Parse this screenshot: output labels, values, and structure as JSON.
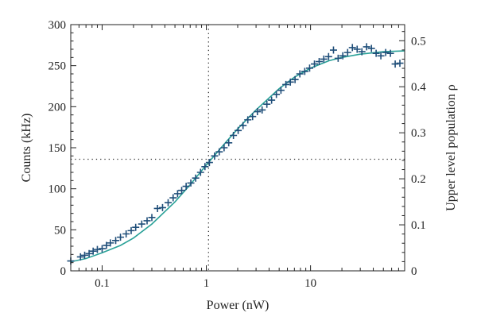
{
  "chart_data": {
    "type": "scatter",
    "xlabel": "Power (nW)",
    "ylabel": "Counts (kHz)",
    "y2label": "Upper level population ρ",
    "x_scale": "log",
    "xlim": [
      0.05,
      80
    ],
    "ylim": [
      0,
      300
    ],
    "y2lim": [
      0,
      0.535
    ],
    "x_ticks": [
      {
        "value": 0.1,
        "label": "0.1"
      },
      {
        "value": 1,
        "label": "1"
      },
      {
        "value": 10,
        "label": "10"
      }
    ],
    "y_ticks": [
      {
        "value": 0,
        "label": "0"
      },
      {
        "value": 50,
        "label": "50"
      },
      {
        "value": 100,
        "label": "100"
      },
      {
        "value": 150,
        "label": "150"
      },
      {
        "value": 200,
        "label": "200"
      },
      {
        "value": 250,
        "label": "250"
      },
      {
        "value": 300,
        "label": "300"
      }
    ],
    "y2_ticks": [
      {
        "value": 0,
        "label": "0"
      },
      {
        "value": 0.1,
        "label": "0.1"
      },
      {
        "value": 0.2,
        "label": "0.2"
      },
      {
        "value": 0.3,
        "label": "0.3"
      },
      {
        "value": 0.4,
        "label": "0.4"
      },
      {
        "value": 0.5,
        "label": "0.5"
      }
    ],
    "guides": {
      "x": 1.05,
      "y": 136
    },
    "colors": {
      "markers": "#1f4e79",
      "fit": "#2aa198",
      "guides": "#333333",
      "axes": "#222222"
    },
    "series": [
      {
        "kind": "data",
        "marker": "plus",
        "points": [
          [
            0.05,
            12
          ],
          [
            0.062,
            17
          ],
          [
            0.068,
            19
          ],
          [
            0.075,
            21
          ],
          [
            0.082,
            24
          ],
          [
            0.09,
            26
          ],
          [
            0.1,
            27
          ],
          [
            0.11,
            31
          ],
          [
            0.12,
            34
          ],
          [
            0.135,
            37
          ],
          [
            0.15,
            41
          ],
          [
            0.17,
            45
          ],
          [
            0.19,
            49
          ],
          [
            0.21,
            53
          ],
          [
            0.24,
            57
          ],
          [
            0.27,
            61
          ],
          [
            0.3,
            65
          ],
          [
            0.34,
            76
          ],
          [
            0.38,
            77
          ],
          [
            0.43,
            83
          ],
          [
            0.48,
            89
          ],
          [
            0.53,
            94
          ],
          [
            0.58,
            98
          ],
          [
            0.64,
            103
          ],
          [
            0.71,
            107
          ],
          [
            0.79,
            113
          ],
          [
            0.88,
            120
          ],
          [
            0.97,
            127
          ],
          [
            1.07,
            132
          ],
          [
            1.2,
            140
          ],
          [
            1.33,
            145
          ],
          [
            1.48,
            150
          ],
          [
            1.64,
            156
          ],
          [
            1.82,
            165
          ],
          [
            2.02,
            171
          ],
          [
            2.25,
            177
          ],
          [
            2.5,
            184
          ],
          [
            2.78,
            188
          ],
          [
            3.09,
            194
          ],
          [
            3.43,
            196
          ],
          [
            3.81,
            203
          ],
          [
            4.23,
            208
          ],
          [
            4.7,
            215
          ],
          [
            5.2,
            220
          ],
          [
            5.8,
            227
          ],
          [
            6.4,
            230
          ],
          [
            7.1,
            233
          ],
          [
            7.9,
            240
          ],
          [
            8.8,
            243
          ],
          [
            9.8,
            247
          ],
          [
            10.9,
            252
          ],
          [
            12.1,
            255
          ],
          [
            13.4,
            258
          ],
          [
            14.9,
            261
          ],
          [
            16.6,
            269
          ],
          [
            18.4,
            259
          ],
          [
            20.4,
            262
          ],
          [
            22.7,
            266
          ],
          [
            25.2,
            272
          ],
          [
            28,
            270
          ],
          [
            31.1,
            267
          ],
          [
            34.5,
            273
          ],
          [
            38.4,
            271
          ],
          [
            42.6,
            265
          ],
          [
            47.3,
            262
          ],
          [
            52.6,
            266
          ],
          [
            58.4,
            265
          ],
          [
            64.9,
            252
          ],
          [
            72,
            253
          ]
        ]
      },
      {
        "kind": "fit",
        "points": [
          [
            0.05,
            11
          ],
          [
            0.07,
            15
          ],
          [
            0.1,
            22
          ],
          [
            0.15,
            31
          ],
          [
            0.2,
            40
          ],
          [
            0.3,
            57
          ],
          [
            0.5,
            84
          ],
          [
            0.7,
            105
          ],
          [
            1,
            129
          ],
          [
            1.5,
            155
          ],
          [
            2,
            173
          ],
          [
            3,
            196
          ],
          [
            5,
            222
          ],
          [
            7,
            236
          ],
          [
            10,
            247
          ],
          [
            15,
            256
          ],
          [
            20,
            260
          ],
          [
            30,
            264
          ],
          [
            50,
            267
          ],
          [
            80,
            268
          ]
        ]
      }
    ]
  }
}
